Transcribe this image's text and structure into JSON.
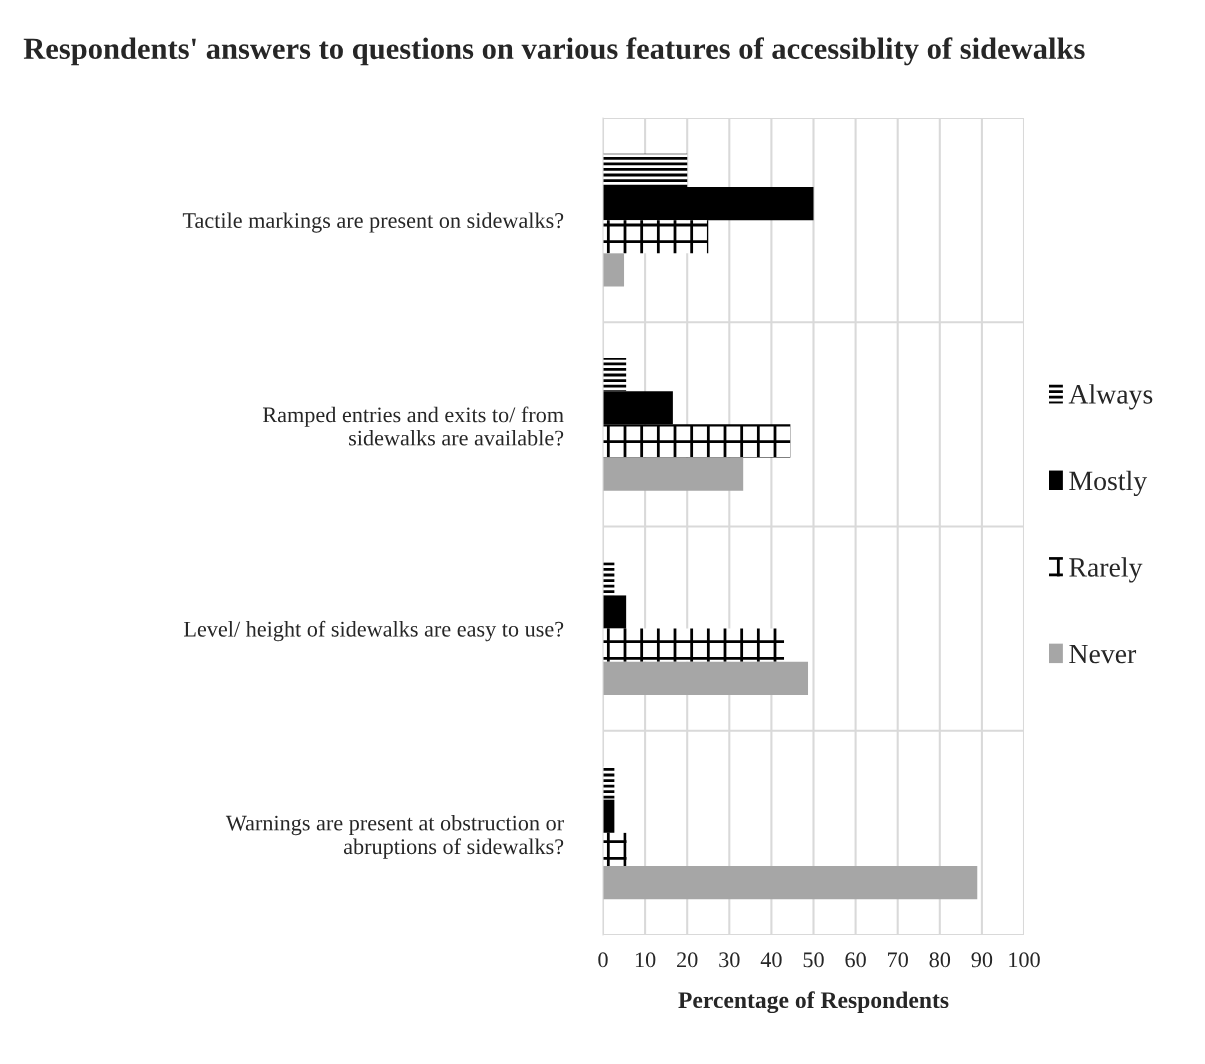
{
  "chart_data": {
    "type": "bar",
    "orientation": "horizontal",
    "title": "Respondents' answers to questions on various features of accessiblity of sidewalks",
    "xlabel": "Percentage of Respondents",
    "categories": [
      "Tactile markings are present on sidewalks?",
      "Ramped entries and exits to/ from\nsidewalks are available?",
      "Level/ height of sidewalks are easy to use?",
      "Warnings are present at obstruction or\nabruptions of sidewalks?"
    ],
    "series": [
      {
        "name": "Always",
        "color": "#000000",
        "values": [
          20,
          5.5,
          2.7,
          2.7
        ]
      },
      {
        "name": "Mostly",
        "color": "#000000",
        "values": [
          50,
          16.6,
          5.5,
          2.7
        ]
      },
      {
        "name": "Rarely",
        "color": "#000000",
        "values": [
          25,
          44.5,
          43,
          5.6
        ]
      },
      {
        "name": "Never",
        "color": "#a6a6a6",
        "values": [
          5,
          33.3,
          48.7,
          88.9
        ]
      }
    ],
    "xlim": [
      0,
      100
    ],
    "xticks": [
      0,
      10,
      20,
      30,
      40,
      50,
      60,
      70,
      80,
      90,
      100
    ],
    "grid": true,
    "legend": "right"
  }
}
